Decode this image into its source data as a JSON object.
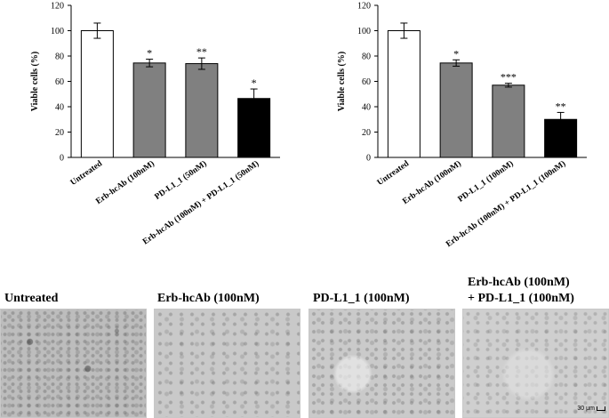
{
  "chart_data": [
    {
      "type": "bar",
      "title": "",
      "xlabel": "",
      "ylabel": "Viable cells (%)",
      "ylim": [
        0,
        120
      ],
      "yticks": [
        0,
        20,
        40,
        60,
        80,
        100,
        120
      ],
      "categories": [
        "Untreated",
        "Erb-hcAb (100nM)",
        "PD-L1_1 (50nM)",
        "Erb-hcAb (100nM) + PD-L1_1 (50nM)"
      ],
      "values": [
        100,
        74.5,
        74,
        46.5
      ],
      "errors": [
        6,
        3,
        4.5,
        7.5
      ],
      "significance": [
        "",
        "*",
        "**",
        "*"
      ],
      "colors": [
        "#ffffff",
        "#808080",
        "#808080",
        "#000000"
      ],
      "grid": false,
      "legend": "none"
    },
    {
      "type": "bar",
      "title": "",
      "xlabel": "",
      "ylabel": "Viable cells (%)",
      "ylim": [
        0,
        120
      ],
      "yticks": [
        0,
        20,
        40,
        60,
        80,
        100,
        120
      ],
      "categories": [
        "Untreated",
        "Erb-hcAb (100nM)",
        "PD-L1_1 (100nM)",
        "Erb-hcAb (100nM) + PD-L1_1 (100nM)"
      ],
      "values": [
        100,
        74.5,
        57,
        30
      ],
      "errors": [
        6,
        2.5,
        1.5,
        5.5
      ],
      "significance": [
        "",
        "*",
        "***",
        "**"
      ],
      "colors": [
        "#ffffff",
        "#808080",
        "#808080",
        "#000000"
      ],
      "grid": false,
      "legend": "none"
    }
  ],
  "micrographs": {
    "panels": [
      {
        "label": "Untreated"
      },
      {
        "label": "Erb-hcAb (100nM)"
      },
      {
        "label": "PD-L1_1 (100nM)"
      },
      {
        "label_line1": "Erb-hcAb (100nM)",
        "label_line2": "+ PD-L1_1 (100nM)"
      }
    ],
    "scale_bar": "30 μm"
  }
}
